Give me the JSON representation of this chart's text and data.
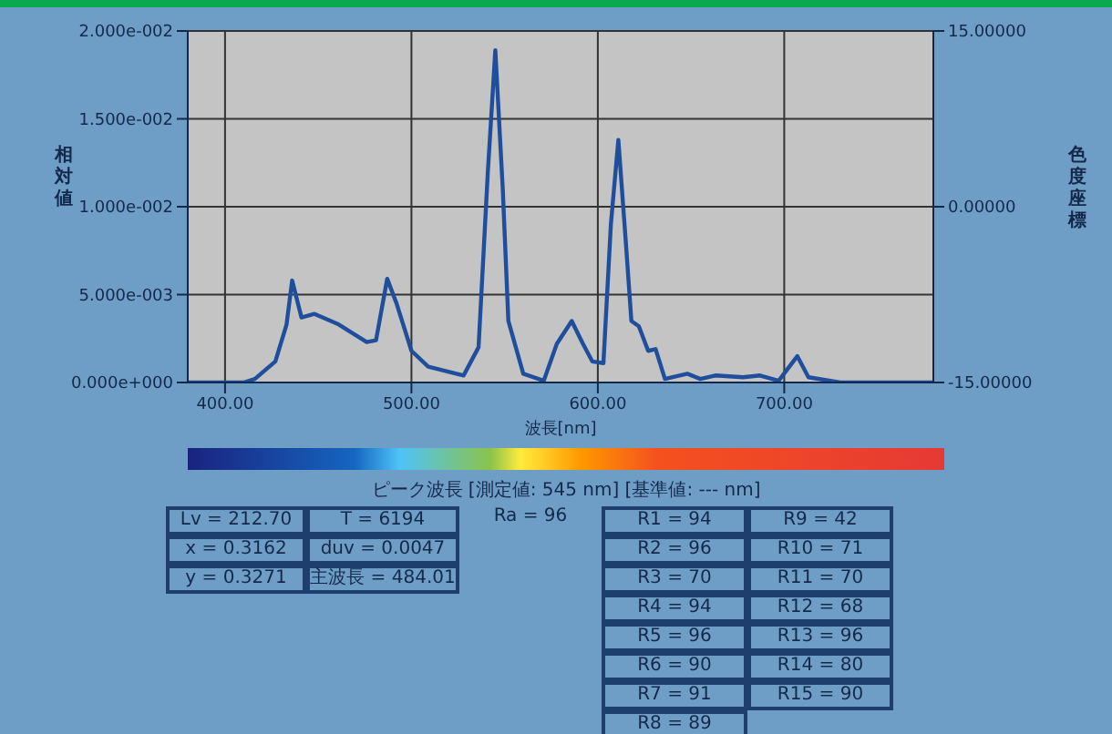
{
  "chart_data": {
    "type": "line",
    "xlabel": "波長[nm]",
    "ylabel": "相対値",
    "y2label": "色度座標",
    "subtitle": "ピーク波長 [測定値: 545 nm] [基準値: --- nm]",
    "x": [
      380,
      410,
      416,
      427,
      433,
      436,
      441,
      448,
      461,
      476,
      481,
      487,
      492,
      500,
      509,
      528,
      536,
      541,
      545,
      549,
      552,
      560,
      571,
      578,
      586,
      592,
      597,
      603,
      607,
      611,
      615,
      618,
      622,
      627,
      631,
      636,
      648,
      655,
      663,
      678,
      687,
      697,
      707,
      713,
      730,
      780
    ],
    "series": [
      {
        "color": "#1f4e9c",
        "values": [
          0,
          0,
          0.0002,
          0.0012,
          0.0033,
          0.0058,
          0.0037,
          0.0039,
          0.0033,
          0.0023,
          0.0024,
          0.0059,
          0.0045,
          0.0018,
          0.0009,
          0.0004,
          0.002,
          0.012,
          0.0189,
          0.011,
          0.0035,
          0.0005,
          0.0001,
          0.0022,
          0.0035,
          0.0022,
          0.0012,
          0.0011,
          0.009,
          0.0138,
          0.008,
          0.0035,
          0.0032,
          0.0018,
          0.0019,
          0.0002,
          0.0005,
          0.0002,
          0.0004,
          0.0003,
          0.0004,
          0.0001,
          0.0015,
          0.0003,
          0,
          0
        ]
      }
    ],
    "xlim": [
      380,
      780
    ],
    "xticks": [
      {
        "value": 400,
        "label": "400.00"
      },
      {
        "value": 500,
        "label": "500.00"
      },
      {
        "value": 600,
        "label": "600.00"
      },
      {
        "value": 700,
        "label": "700.00"
      }
    ],
    "ylim": [
      0,
      0.02
    ],
    "yticks": [
      {
        "value": 0,
        "label": "0.000e+000"
      },
      {
        "value": 0.005,
        "label": "5.000e-003"
      },
      {
        "value": 0.01,
        "label": "1.000e-002"
      },
      {
        "value": 0.015,
        "label": "1.500e-002"
      },
      {
        "value": 0.02,
        "label": "2.000e-002"
      }
    ],
    "y2lim": [
      -15,
      15
    ],
    "y2ticks": [
      {
        "value": -15,
        "label": "-15.00000"
      },
      {
        "value": 0,
        "label": "0.00000"
      },
      {
        "value": 15,
        "label": "15.00000"
      }
    ],
    "grid": true,
    "marker": "none",
    "line_style": "solid",
    "annotations": [
      "Lv = 212.70",
      "x = 0.3162",
      "y = 0.3271",
      "T = 6194",
      "duv = 0.0047",
      "主波長 = 484.01",
      "Ra = 96",
      "R1 = 94",
      "R2 = 96",
      "R3 = 70",
      "R4 = 94",
      "R5 = 96",
      "R6 = 90",
      "R7 = 91",
      "R8 = 89",
      "R9 = 42",
      "R10 = 71",
      "R11 = 70",
      "R12 = 68",
      "R13 = 96",
      "R14 = 80",
      "R15 = 90"
    ]
  }
}
